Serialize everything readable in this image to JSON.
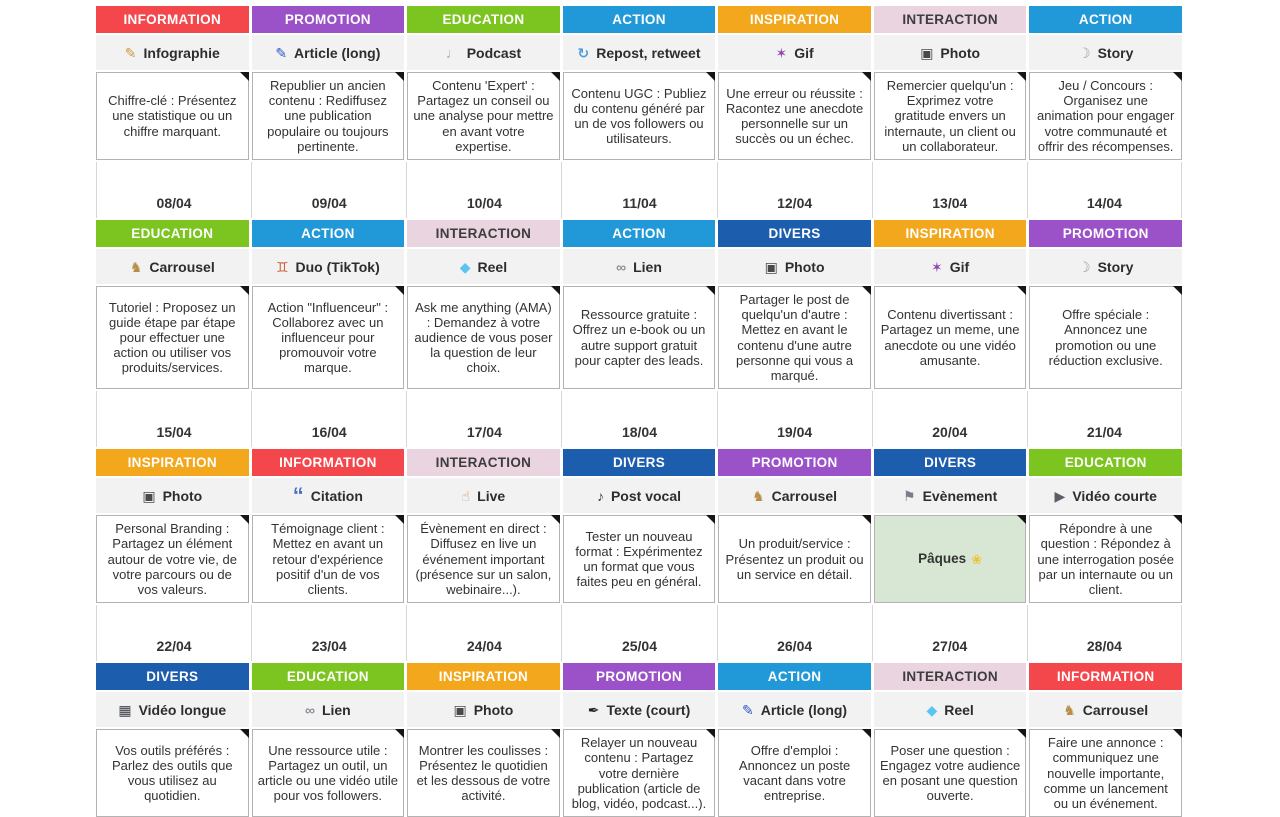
{
  "categories": {
    "INFORMATION": {
      "bg": "#f4474c",
      "fg": "#ffffff"
    },
    "PROMOTION": {
      "bg": "#9b51c8",
      "fg": "#ffffff"
    },
    "EDUCATION": {
      "bg": "#7cc41f",
      "fg": "#ffffff"
    },
    "ACTION": {
      "bg": "#2199d8",
      "fg": "#ffffff"
    },
    "INSPIRATION": {
      "bg": "#f2a71c",
      "fg": "#ffffff"
    },
    "INTERACTION": {
      "bg": "#e9d4df",
      "fg": "#3d3d3d"
    },
    "DIVERS": {
      "bg": "#1c5dad",
      "fg": "#ffffff"
    }
  },
  "highlight_color": "#d8e7d3",
  "weeks": [
    {
      "dates": [],
      "days": [
        {
          "category": "INFORMATION",
          "icon": "✎",
          "icon_name": "crayon-icon",
          "icon_color": "#c79b3e",
          "format": "Infographie",
          "description": "Chiffre-clé :  Présentez une statistique ou un chiffre marquant."
        },
        {
          "category": "PROMOTION",
          "icon": "✎",
          "icon_name": "pen-icon",
          "icon_color": "#3056c8",
          "format": "Article (long)",
          "description": "Republier un ancien contenu : Rediffusez une publication populaire ou toujours pertinente."
        },
        {
          "category": "EDUCATION",
          "icon": "♩",
          "icon_name": "mic-outline-icon",
          "icon_color": "#a8adb5",
          "format": "Podcast",
          "description": "Contenu 'Expert' : Partagez un conseil ou une analyse pour mettre en avant votre expertise."
        },
        {
          "category": "ACTION",
          "icon": "↻",
          "icon_name": "repost-icon",
          "icon_color": "#4f9bd8",
          "format": "Repost, retweet",
          "description": "Contenu UGC :  Publiez du contenu généré par un de vos followers ou utilisateurs."
        },
        {
          "category": "INSPIRATION",
          "icon": "✶",
          "icon_name": "dancer-icon",
          "icon_color": "#8e44ad",
          "format": "Gif",
          "description": "Une erreur ou réussite : Racontez une anecdote personnelle sur un succès ou un échec."
        },
        {
          "category": "INTERACTION",
          "icon": "▣",
          "icon_name": "camera-icon",
          "icon_color": "#4a4a4a",
          "format": "Photo",
          "description": "Remercier quelqu'un : Exprimez votre gratitude envers un internaute, un client ou un collaborateur."
        },
        {
          "category": "ACTION",
          "icon": "☽",
          "icon_name": "story-icon",
          "icon_color": "#9aa0a6",
          "format": "Story",
          "description": "Jeu / Concours : Organisez une animation pour engager votre communauté et offrir des récompenses."
        }
      ]
    },
    {
      "dates": [
        "08/04",
        "09/04",
        "10/04",
        "11/04",
        "12/04",
        "13/04",
        "14/04"
      ],
      "days": [
        {
          "category": "EDUCATION",
          "icon": "♞",
          "icon_name": "carousel-horse-icon",
          "icon_color": "#b98c4a",
          "format": "Carrousel",
          "description": "Tutoriel : Proposez un guide étape par étape pour effectuer une action ou utiliser vos produits/services."
        },
        {
          "category": "ACTION",
          "icon": "♊",
          "icon_name": "duo-people-icon",
          "icon_color": "#cf5f3a",
          "format": "Duo (TikTok)",
          "description": "Action \"Influenceur\" : Collaborez avec un influenceur pour promouvoir votre marque."
        },
        {
          "category": "INTERACTION",
          "icon": "◆",
          "icon_name": "reel-diamond-icon",
          "icon_color": "#59c6f2",
          "format": "Reel",
          "description": "Ask me anything (AMA) : Demandez à votre audience de vous poser la question de leur choix."
        },
        {
          "category": "ACTION",
          "icon": "∞",
          "icon_name": "link-icon",
          "icon_color": "#8a8f98",
          "format": "Lien",
          "description": "Ressource gratuite : Offrez un e-book ou un autre support gratuit pour capter des leads."
        },
        {
          "category": "DIVERS",
          "icon": "▣",
          "icon_name": "camera-icon",
          "icon_color": "#4a4a4a",
          "format": "Photo",
          "description": "Partager le post de quelqu'un d'autre : Mettez en avant le contenu d'une autre personne qui vous a marqué."
        },
        {
          "category": "INSPIRATION",
          "icon": "✶",
          "icon_name": "dancer-icon",
          "icon_color": "#8e44ad",
          "format": "Gif",
          "description": "Contenu divertissant : Partagez un meme, une anecdote ou une vidéo amusante."
        },
        {
          "category": "PROMOTION",
          "icon": "☽",
          "icon_name": "story-icon",
          "icon_color": "#9aa0a6",
          "format": "Story",
          "description": "Offre spéciale : Annoncez une promotion ou une réduction exclusive."
        }
      ]
    },
    {
      "dates": [
        "15/04",
        "16/04",
        "17/04",
        "18/04",
        "19/04",
        "20/04",
        "21/04"
      ],
      "days": [
        {
          "category": "INSPIRATION",
          "icon": "▣",
          "icon_name": "camera-icon",
          "icon_color": "#4a4a4a",
          "format": "Photo",
          "description": "Personal Branding : Partagez un élément autour de votre vie, de votre parcours ou de vos valeurs."
        },
        {
          "category": "INFORMATION",
          "icon": "“",
          "icon_name": "quote-icon",
          "icon_color": "#4a72c4",
          "format": "Citation",
          "description": "Témoignage client : Mettez en avant un retour d'expérience positif d'un de vos clients."
        },
        {
          "category": "INTERACTION",
          "icon": "☝",
          "icon_name": "hand-icon",
          "icon_color": "#c9996b",
          "format": "Live",
          "description": "Évènement en direct : Diffusez en live un événement important (présence sur un salon, webinaire...)."
        },
        {
          "category": "DIVERS",
          "icon": "♪",
          "icon_name": "mic-icon",
          "icon_color": "#3a3f45",
          "format": "Post vocal",
          "description": "Tester un nouveau format :  Expérimentez un format que vous faites peu en général."
        },
        {
          "category": "PROMOTION",
          "icon": "♞",
          "icon_name": "carousel-horse-icon",
          "icon_color": "#b98c4a",
          "format": "Carrousel",
          "description": "Un produit/service : Présentez un produit ou un service en détail."
        },
        {
          "category": "DIVERS",
          "icon": "⚑",
          "icon_name": "flag-icon",
          "icon_color": "#7a7f87",
          "format": "Evènement",
          "description": "Pâques",
          "highlight": true,
          "desc_icon": "❀",
          "desc_icon_name": "easter-chick-icon",
          "desc_icon_color": "#f2c12e"
        },
        {
          "category": "EDUCATION",
          "icon": "▶",
          "icon_name": "clapperboard-icon",
          "icon_color": "#5a5f66",
          "format": "Vidéo courte",
          "description": "Répondre à une question : Répondez à une interrogation posée par un internaute ou un client."
        }
      ]
    },
    {
      "dates": [
        "22/04",
        "23/04",
        "24/04",
        "25/04",
        "26/04",
        "27/04",
        "28/04"
      ],
      "days": [
        {
          "category": "DIVERS",
          "icon": "▦",
          "icon_name": "videocassette-icon",
          "icon_color": "#3a3f45",
          "format": "Vidéo longue",
          "description": "Vos outils préférés : Parlez des outils que vous utilisez au quotidien."
        },
        {
          "category": "EDUCATION",
          "icon": "∞",
          "icon_name": "link-icon",
          "icon_color": "#8a8f98",
          "format": "Lien",
          "description": "Une ressource utile : Partagez un outil, un article ou une vidéo utile pour vos followers."
        },
        {
          "category": "INSPIRATION",
          "icon": "▣",
          "icon_name": "camera-icon",
          "icon_color": "#4a4a4a",
          "format": "Photo",
          "description": "Montrer les coulisses : Présentez le quotidien et les dessous de votre activité."
        },
        {
          "category": "PROMOTION",
          "icon": "✒",
          "icon_name": "nib-icon",
          "icon_color": "#1f1f1f",
          "format": "Texte (court)",
          "description": "Relayer un nouveau contenu :  Partagez votre dernière publication (article de blog, vidéo, podcast...)."
        },
        {
          "category": "ACTION",
          "icon": "✎",
          "icon_name": "pen-icon",
          "icon_color": "#3056c8",
          "format": "Article (long)",
          "description": "Offre d'emploi : Annoncez un poste vacant dans votre entreprise."
        },
        {
          "category": "INTERACTION",
          "icon": "◆",
          "icon_name": "reel-diamond-icon",
          "icon_color": "#59c6f2",
          "format": "Reel",
          "description": "Poser une question : Engagez votre audience en posant une question ouverte."
        },
        {
          "category": "INFORMATION",
          "icon": "♞",
          "icon_name": "carousel-horse-icon",
          "icon_color": "#b98c4a",
          "format": "Carrousel",
          "description": "Faire une annonce : communiquez une nouvelle importante, comme un lancement ou un événement."
        }
      ]
    }
  ]
}
